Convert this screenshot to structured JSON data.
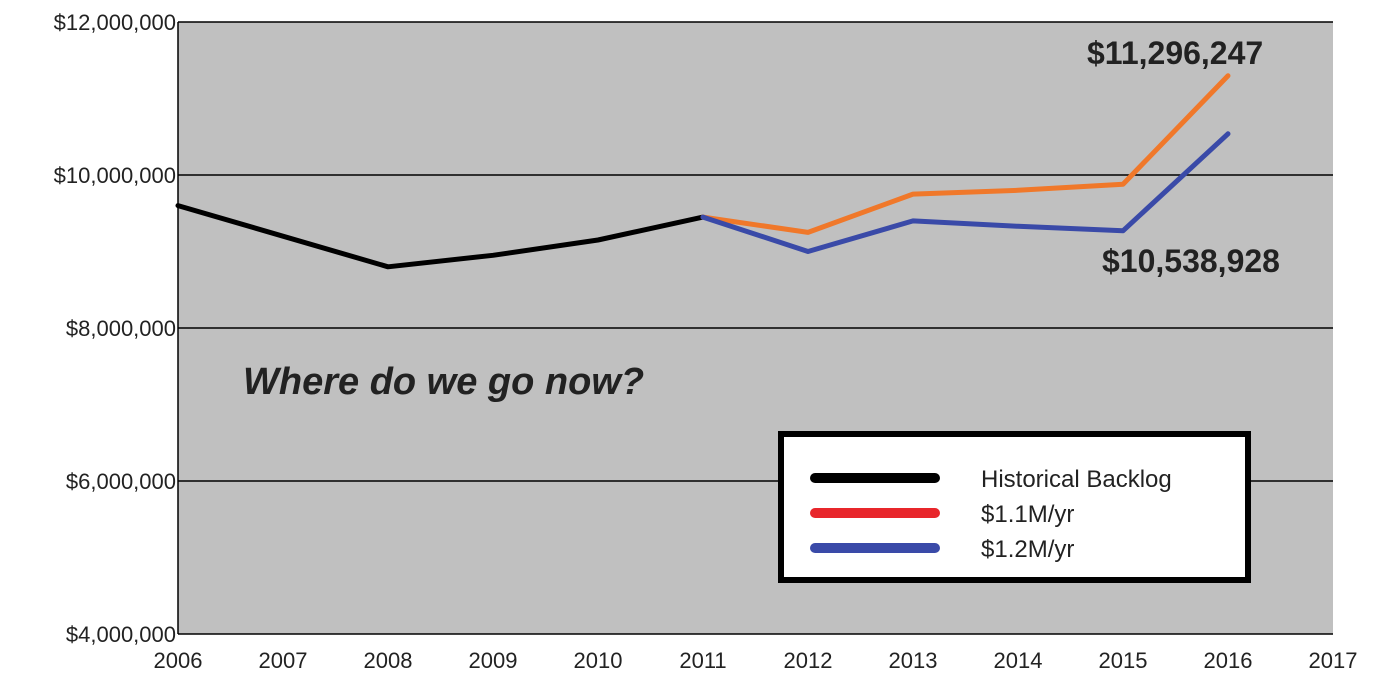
{
  "chart_data": {
    "type": "line",
    "title": "",
    "xlabel": "",
    "ylabel": "",
    "xlim": [
      2006,
      2017
    ],
    "ylim": [
      4000000,
      12000000
    ],
    "x_ticks": [
      "2006",
      "2007",
      "2008",
      "2009",
      "2010",
      "2011",
      "2012",
      "2013",
      "2014",
      "2015",
      "2016",
      "2017"
    ],
    "y_ticks": [
      "$4,000,000",
      "$6,000,000",
      "$8,000,000",
      "$10,000,000",
      "$12,000,000"
    ],
    "y_tick_values": [
      4000000,
      6000000,
      8000000,
      10000000,
      12000000
    ],
    "grid": true,
    "background": "#c0c0c0",
    "legend_position": "bottom-right",
    "series": [
      {
        "name": "Historical Backlog",
        "color": "#000000",
        "legend_color": "#000000",
        "x": [
          2006,
          2008,
          2009,
          2010,
          2011
        ],
        "values": [
          9600000,
          8800000,
          8950000,
          9150000,
          9450000
        ]
      },
      {
        "name": "$1.1M/yr",
        "color": "#f0782a",
        "legend_color": "#e8262b",
        "x": [
          2011,
          2012,
          2013,
          2014,
          2015,
          2016
        ],
        "values": [
          9450000,
          9250000,
          9750000,
          9800000,
          9880000,
          11296247
        ]
      },
      {
        "name": "$1.2M/yr",
        "color": "#3a4aa8",
        "legend_color": "#3a4aa8",
        "x": [
          2011,
          2012,
          2013,
          2014,
          2015,
          2016
        ],
        "values": [
          9450000,
          9000000,
          9400000,
          9330000,
          9270000,
          10538928
        ]
      }
    ],
    "annotations": [
      {
        "text": "$11,296,247",
        "series": 1
      },
      {
        "text": "$10,538,928",
        "series": 2
      },
      {
        "text": "Where do we go now?"
      }
    ]
  }
}
